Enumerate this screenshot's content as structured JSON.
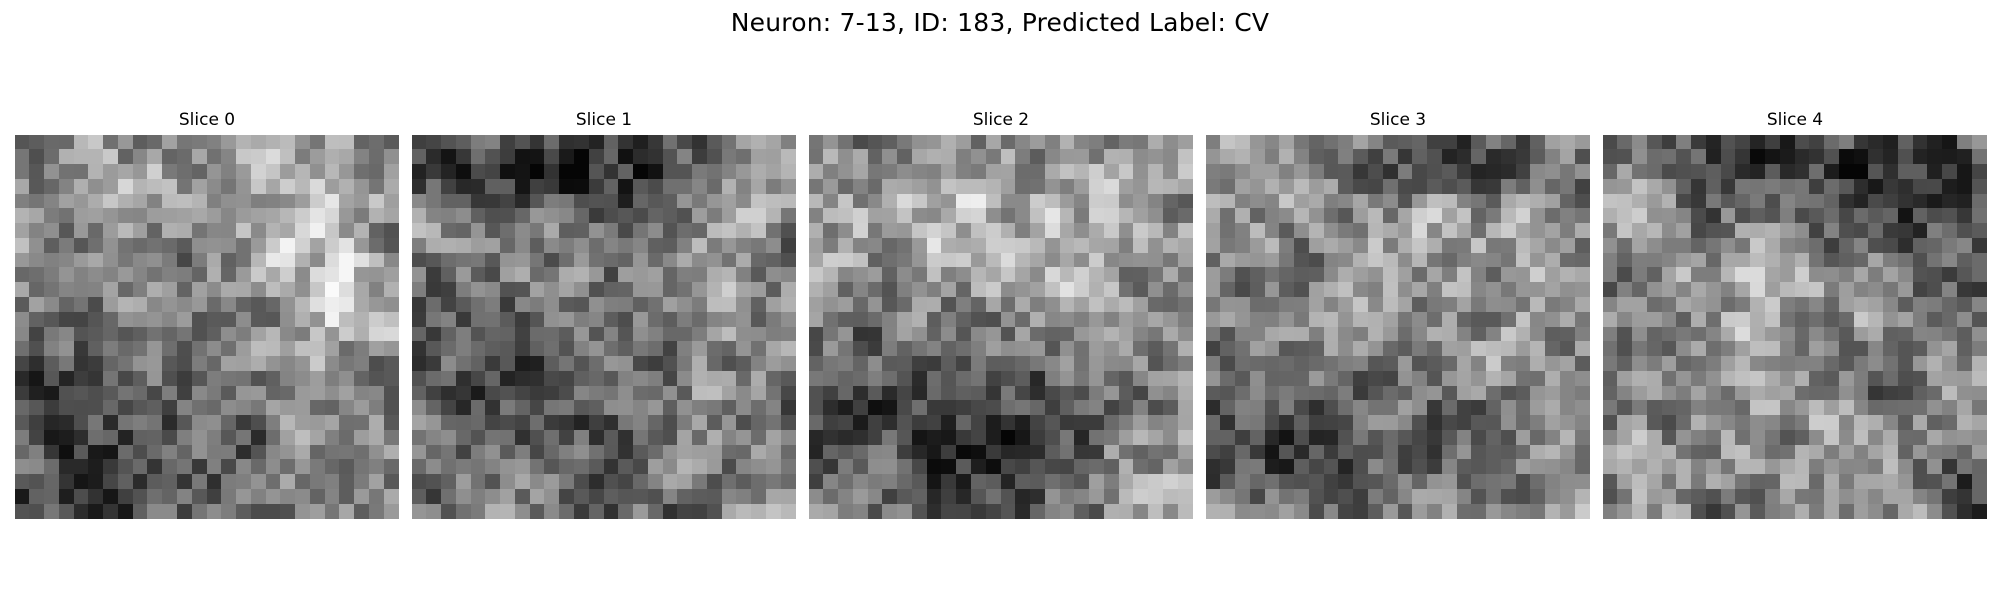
{
  "figure": {
    "title": "Neuron: 7-13, ID: 183, Predicted Label: CV"
  },
  "panels": [
    {
      "title": "Slice 0"
    },
    {
      "title": "Slice 1"
    },
    {
      "title": "Slice 2"
    },
    {
      "title": "Slice 3"
    },
    {
      "title": "Slice 4"
    }
  ],
  "colormap": "grayscale"
}
